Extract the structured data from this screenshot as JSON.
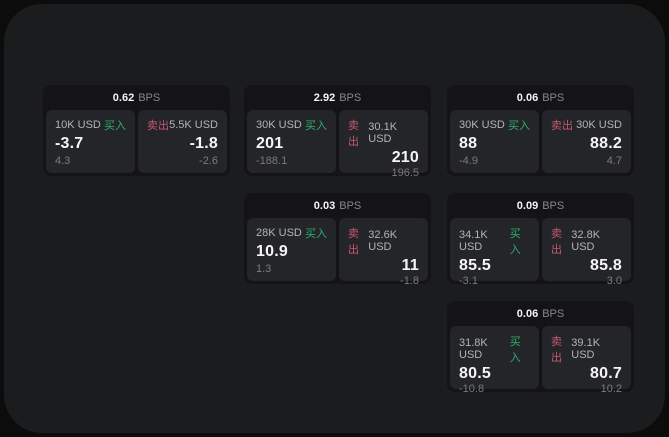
{
  "labels": {
    "bps_unit": "BPS",
    "buy": "买入",
    "sell": "卖出"
  },
  "colors": {
    "page_bg": "#0c0c0d",
    "surface_bg": "#1b1c1d",
    "card_bg": "#141416",
    "cell_bg": "#242528",
    "buy_green": "#2fae6e",
    "sell_red": "#c9556f",
    "value_white": "#f5f5f6",
    "label_gray": "#b4b4b7",
    "sub_gray": "#7b7b7f"
  },
  "cards": [
    {
      "bps": "0.62",
      "buy": {
        "size": "10K USD",
        "price": "-3.7",
        "delta": "4.3"
      },
      "sell": {
        "size": "5.5K USD",
        "price": "-1.8",
        "delta": "-2.6"
      }
    },
    {
      "bps": "2.92",
      "buy": {
        "size": "30K USD",
        "price": "201",
        "delta": "-188.1"
      },
      "sell": {
        "size": "30.1K USD",
        "price": "210",
        "delta": "196.5"
      }
    },
    {
      "bps": "0.06",
      "buy": {
        "size": "30K USD",
        "price": "88",
        "delta": "-4.9"
      },
      "sell": {
        "size": "30K USD",
        "price": "88.2",
        "delta": "4.7"
      }
    },
    {
      "bps": "0.03",
      "buy": {
        "size": "28K USD",
        "price": "10.9",
        "delta": "1.3"
      },
      "sell": {
        "size": "32.6K USD",
        "price": "11",
        "delta": "-1.8"
      }
    },
    {
      "bps": "0.09",
      "buy": {
        "size": "34.1K USD",
        "price": "85.5",
        "delta": "-3.1"
      },
      "sell": {
        "size": "32.8K USD",
        "price": "85.8",
        "delta": "3.0"
      }
    },
    {
      "bps": "0.06",
      "buy": {
        "size": "31.8K USD",
        "price": "80.5",
        "delta": "-10.8"
      },
      "sell": {
        "size": "39.1K USD",
        "price": "80.7",
        "delta": "10.2"
      }
    }
  ]
}
